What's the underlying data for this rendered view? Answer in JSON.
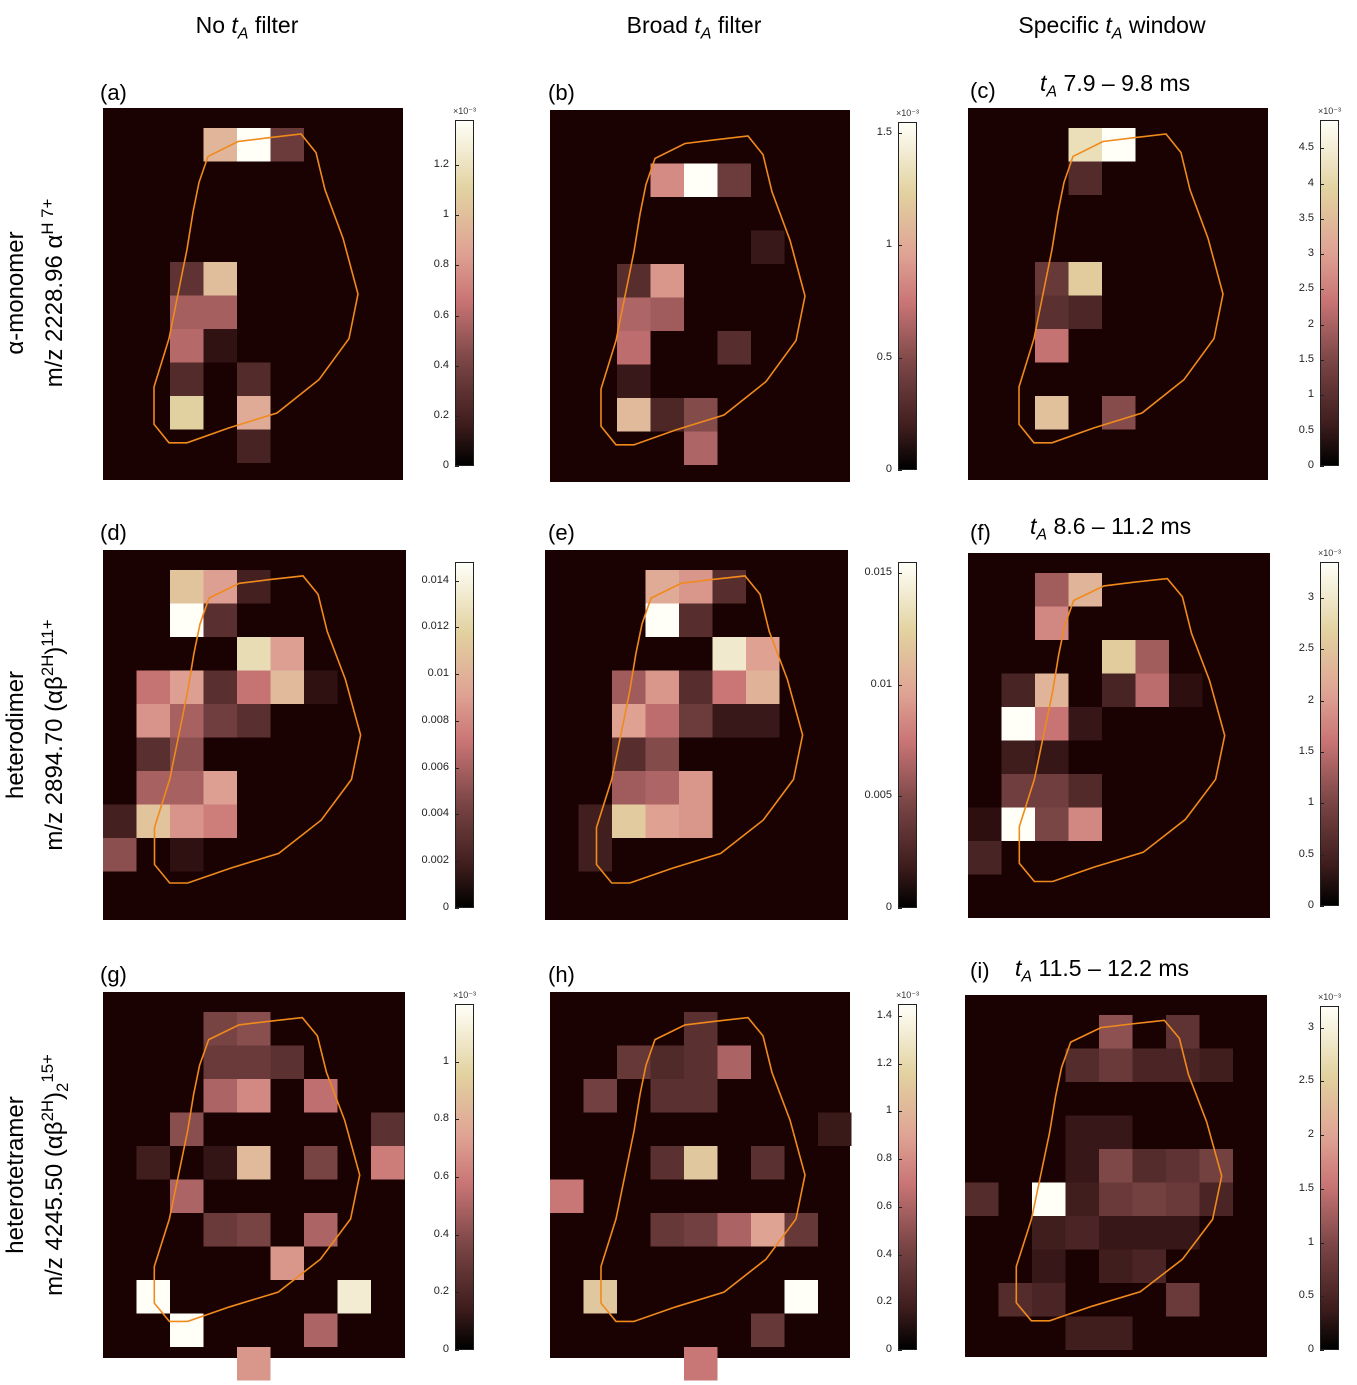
{
  "columns": [
    {
      "prefix": "No ",
      "t": "t",
      "sub": "A",
      "suffix": " filter"
    },
    {
      "prefix": "Broad ",
      "t": "t",
      "sub": "A",
      "suffix": " filter"
    },
    {
      "prefix": "Specific ",
      "t": "t",
      "sub": "A",
      "suffix": " window"
    }
  ],
  "rows": [
    {
      "line1": "α-monomer",
      "line2_main": "m/z 2228.96 α",
      "line2_sup": "H 7+",
      "line2_sub": ""
    },
    {
      "line1": "heterodimer",
      "line2_main": "m/z 2894.70 (αβ",
      "line2_sup2": "2H",
      "line2_close": ")",
      "line2_sup": "11+",
      "line2_sub": ""
    },
    {
      "line1": "heterotetramer",
      "line2_main": "m/z 4245.50 (αβ",
      "line2_sup2": "2H",
      "line2_close": ")",
      "line2_sup": "15+",
      "line2_sub": "2"
    }
  ],
  "windows": [
    {
      "t": "t",
      "sub": "A",
      "range": " 7.9 – 9.8 ms"
    },
    {
      "t": "t",
      "sub": "A",
      "range": " 8.6 – 11.2 ms"
    },
    {
      "t": "t",
      "sub": "A",
      "range": " 11.5 – 12.2 ms"
    }
  ],
  "chart_data": [
    {
      "type": "heatmap",
      "label": "(a)",
      "vmax": 1.38,
      "exponent": "×10⁻³",
      "ticks": [
        "0",
        "0.2",
        "0.4",
        "0.6",
        "0.8",
        "1",
        "1.2"
      ],
      "tick_values": [
        0,
        0.2,
        0.4,
        0.6,
        0.8,
        1,
        1.2
      ],
      "cells": [
        [
          3,
          0,
          0.95
        ],
        [
          4,
          0,
          1.38
        ],
        [
          5,
          0,
          0.35
        ],
        [
          2,
          4,
          0.3
        ],
        [
          3,
          4,
          1.0
        ],
        [
          2,
          5,
          0.55
        ],
        [
          3,
          5,
          0.55
        ],
        [
          2,
          6,
          0.6
        ],
        [
          3,
          6,
          0.1
        ],
        [
          2,
          7,
          0.25
        ],
        [
          4,
          7,
          0.25
        ],
        [
          2,
          8,
          1.1
        ],
        [
          4,
          8,
          0.9
        ],
        [
          4,
          9,
          0.2
        ]
      ]
    },
    {
      "type": "heatmap",
      "label": "(b)",
      "vmax": 1.55,
      "exponent": "×10⁻³",
      "ticks": [
        "0",
        "0.5",
        "1",
        "1.5"
      ],
      "tick_values": [
        0,
        0.5,
        1,
        1.5
      ],
      "cells": [
        [
          3,
          1,
          0.85
        ],
        [
          4,
          1,
          1.55
        ],
        [
          5,
          1,
          0.4
        ],
        [
          6,
          3,
          0.15
        ],
        [
          2,
          4,
          0.3
        ],
        [
          3,
          4,
          0.9
        ],
        [
          2,
          5,
          0.65
        ],
        [
          3,
          5,
          0.6
        ],
        [
          2,
          6,
          0.7
        ],
        [
          5,
          6,
          0.3
        ],
        [
          2,
          7,
          0.15
        ],
        [
          2,
          8,
          1.1
        ],
        [
          3,
          8,
          0.25
        ],
        [
          4,
          8,
          0.5
        ],
        [
          4,
          9,
          0.65
        ]
      ]
    },
    {
      "type": "heatmap",
      "label": "(c)",
      "vmax": 4.9,
      "exponent": "×10⁻³",
      "ticks": [
        "0",
        "0.5",
        "1",
        "1.5",
        "2",
        "2.5",
        "3",
        "3.5",
        "4",
        "4.5"
      ],
      "tick_values": [
        0,
        0.5,
        1,
        1.5,
        2,
        2.5,
        3,
        3.5,
        4,
        4.5
      ],
      "cells": [
        [
          3,
          0,
          4.2
        ],
        [
          4,
          0,
          4.9
        ],
        [
          3,
          1,
          0.9
        ],
        [
          2,
          4,
          1.2
        ],
        [
          3,
          4,
          3.8
        ],
        [
          2,
          5,
          1.0
        ],
        [
          3,
          5,
          0.8
        ],
        [
          2,
          6,
          2.3
        ],
        [
          2,
          8,
          3.6
        ],
        [
          4,
          8,
          1.6
        ]
      ]
    },
    {
      "type": "heatmap",
      "label": "(d)",
      "vmax": 0.0148,
      "exponent": "",
      "ticks": [
        "0",
        "0.002",
        "0.004",
        "0.006",
        "0.008",
        "0.01",
        "0.012",
        "0.014"
      ],
      "tick_values": [
        0,
        0.002,
        0.004,
        0.006,
        0.008,
        0.01,
        0.012,
        0.014
      ],
      "cells": [
        [
          2,
          0,
          0.011
        ],
        [
          3,
          0,
          0.009
        ],
        [
          4,
          0,
          0.002
        ],
        [
          2,
          1,
          0.0148
        ],
        [
          3,
          1,
          0.003
        ],
        [
          4,
          2,
          0.0125
        ],
        [
          5,
          2,
          0.009
        ],
        [
          1,
          3,
          0.007
        ],
        [
          2,
          3,
          0.009
        ],
        [
          3,
          3,
          0.003
        ],
        [
          4,
          3,
          0.007
        ],
        [
          5,
          3,
          0.0105
        ],
        [
          6,
          3,
          0.001
        ],
        [
          1,
          4,
          0.0085
        ],
        [
          2,
          4,
          0.006
        ],
        [
          3,
          4,
          0.004
        ],
        [
          4,
          4,
          0.003
        ],
        [
          1,
          5,
          0.003
        ],
        [
          2,
          5,
          0.005
        ],
        [
          1,
          6,
          0.006
        ],
        [
          2,
          6,
          0.006
        ],
        [
          3,
          6,
          0.009
        ],
        [
          0,
          7,
          0.002
        ],
        [
          1,
          7,
          0.011
        ],
        [
          2,
          7,
          0.0085
        ],
        [
          3,
          7,
          0.0075
        ],
        [
          0,
          8,
          0.005
        ],
        [
          2,
          8,
          0.001
        ]
      ]
    },
    {
      "type": "heatmap",
      "label": "(e)",
      "vmax": 0.0155,
      "exponent": "",
      "ticks": [
        "0",
        "0.005",
        "0.01",
        "0.015"
      ],
      "tick_values": [
        0,
        0.005,
        0.01,
        0.015
      ],
      "cells": [
        [
          3,
          0,
          0.01
        ],
        [
          4,
          0,
          0.009
        ],
        [
          5,
          0,
          0.003
        ],
        [
          3,
          1,
          0.0155
        ],
        [
          4,
          1,
          0.003
        ],
        [
          5,
          2,
          0.014
        ],
        [
          6,
          2,
          0.0095
        ],
        [
          2,
          3,
          0.006
        ],
        [
          3,
          3,
          0.009
        ],
        [
          4,
          3,
          0.003
        ],
        [
          5,
          3,
          0.0075
        ],
        [
          6,
          3,
          0.0105
        ],
        [
          2,
          4,
          0.0095
        ],
        [
          3,
          4,
          0.007
        ],
        [
          4,
          4,
          0.004
        ],
        [
          5,
          4,
          0.0015
        ],
        [
          6,
          4,
          0.0015
        ],
        [
          2,
          5,
          0.003
        ],
        [
          3,
          5,
          0.005
        ],
        [
          2,
          6,
          0.006
        ],
        [
          3,
          6,
          0.0065
        ],
        [
          4,
          6,
          0.009
        ],
        [
          1,
          7,
          0.002
        ],
        [
          2,
          7,
          0.012
        ],
        [
          3,
          7,
          0.0095
        ],
        [
          4,
          7,
          0.009
        ],
        [
          1,
          8,
          0.002
        ]
      ]
    },
    {
      "type": "heatmap",
      "label": "(f)",
      "vmax": 3.35,
      "exponent": "×10⁻³",
      "ticks": [
        "0",
        "0.5",
        "1",
        "1.5",
        "2",
        "2.5",
        "3"
      ],
      "tick_values": [
        0,
        0.5,
        1,
        1.5,
        2,
        2.5,
        3
      ],
      "cells": [
        [
          2,
          0,
          1.3
        ],
        [
          3,
          0,
          2.3
        ],
        [
          2,
          1,
          1.8
        ],
        [
          4,
          2,
          2.6
        ],
        [
          5,
          2,
          1.3
        ],
        [
          1,
          3,
          0.5
        ],
        [
          2,
          3,
          2.3
        ],
        [
          4,
          3,
          0.5
        ],
        [
          5,
          3,
          1.5
        ],
        [
          6,
          3,
          0.2
        ],
        [
          1,
          4,
          3.35
        ],
        [
          2,
          4,
          1.6
        ],
        [
          3,
          4,
          0.3
        ],
        [
          1,
          5,
          0.4
        ],
        [
          2,
          5,
          0.3
        ],
        [
          1,
          6,
          0.9
        ],
        [
          2,
          6,
          0.9
        ],
        [
          3,
          6,
          0.6
        ],
        [
          0,
          7,
          0.2
        ],
        [
          1,
          7,
          3.35
        ],
        [
          2,
          7,
          1.0
        ],
        [
          3,
          7,
          1.8
        ],
        [
          0,
          8,
          0.5
        ]
      ]
    },
    {
      "type": "heatmap",
      "label": "(g)",
      "vmax": 1.2,
      "exponent": "×10⁻³",
      "ticks": [
        "0",
        "0.2",
        "0.4",
        "0.6",
        "0.8",
        "1"
      ],
      "tick_values": [
        0,
        0.2,
        0.4,
        0.6,
        0.8,
        1
      ],
      "cells": [
        [
          3,
          0,
          0.35
        ],
        [
          4,
          0,
          0.4
        ],
        [
          3,
          1,
          0.3
        ],
        [
          4,
          1,
          0.3
        ],
        [
          5,
          1,
          0.25
        ],
        [
          3,
          2,
          0.5
        ],
        [
          4,
          2,
          0.65
        ],
        [
          6,
          2,
          0.55
        ],
        [
          2,
          3,
          0.4
        ],
        [
          8,
          3,
          0.25
        ],
        [
          1,
          4,
          0.15
        ],
        [
          3,
          4,
          0.1
        ],
        [
          4,
          4,
          0.85
        ],
        [
          6,
          4,
          0.35
        ],
        [
          8,
          4,
          0.6
        ],
        [
          2,
          5,
          0.5
        ],
        [
          3,
          6,
          0.3
        ],
        [
          4,
          6,
          0.35
        ],
        [
          6,
          6,
          0.5
        ],
        [
          5,
          7,
          0.7
        ],
        [
          1,
          8,
          1.2
        ],
        [
          7,
          8,
          1.1
        ],
        [
          2,
          9,
          1.2
        ],
        [
          6,
          9,
          0.5
        ],
        [
          4,
          10,
          0.7
        ]
      ]
    },
    {
      "type": "heatmap",
      "label": "(h)",
      "vmax": 1.45,
      "exponent": "×10⁻³",
      "ticks": [
        "0",
        "0.2",
        "0.4",
        "0.6",
        "0.8",
        "1",
        "1.2",
        "1.4"
      ],
      "tick_values": [
        0,
        0.2,
        0.4,
        0.6,
        0.8,
        1,
        1.2,
        1.4
      ],
      "cells": [
        [
          4,
          0,
          0.3
        ],
        [
          2,
          1,
          0.35
        ],
        [
          3,
          1,
          0.25
        ],
        [
          4,
          1,
          0.3
        ],
        [
          5,
          1,
          0.6
        ],
        [
          1,
          2,
          0.4
        ],
        [
          3,
          2,
          0.3
        ],
        [
          4,
          2,
          0.3
        ],
        [
          8,
          3,
          0.15
        ],
        [
          3,
          4,
          0.3
        ],
        [
          4,
          4,
          1.1
        ],
        [
          6,
          4,
          0.3
        ],
        [
          0,
          5,
          0.7
        ],
        [
          3,
          6,
          0.35
        ],
        [
          4,
          6,
          0.4
        ],
        [
          5,
          6,
          0.6
        ],
        [
          6,
          6,
          0.9
        ],
        [
          7,
          6,
          0.35
        ],
        [
          1,
          8,
          1.1
        ],
        [
          7,
          8,
          1.45
        ],
        [
          6,
          9,
          0.35
        ],
        [
          4,
          10,
          0.7
        ]
      ]
    },
    {
      "type": "heatmap",
      "label": "(i)",
      "vmax": 3.2,
      "exponent": "×10⁻³",
      "ticks": [
        "0",
        "0.5",
        "1",
        "1.5",
        "2",
        "2.5",
        "3"
      ],
      "tick_values": [
        0,
        0.5,
        1,
        1.5,
        2,
        2.5,
        3
      ],
      "cells": [
        [
          4,
          0,
          1.1
        ],
        [
          6,
          0,
          0.7
        ],
        [
          3,
          1,
          0.6
        ],
        [
          4,
          1,
          0.8
        ],
        [
          5,
          1,
          0.5
        ],
        [
          6,
          1,
          0.5
        ],
        [
          7,
          1,
          0.4
        ],
        [
          3,
          3,
          0.3
        ],
        [
          4,
          3,
          0.3
        ],
        [
          3,
          4,
          0.3
        ],
        [
          4,
          4,
          1.0
        ],
        [
          5,
          4,
          0.6
        ],
        [
          6,
          4,
          0.7
        ],
        [
          7,
          4,
          0.9
        ],
        [
          0,
          5,
          0.6
        ],
        [
          2,
          5,
          3.2
        ],
        [
          3,
          5,
          0.4
        ],
        [
          4,
          5,
          0.8
        ],
        [
          5,
          5,
          0.9
        ],
        [
          6,
          5,
          0.8
        ],
        [
          7,
          5,
          0.5
        ],
        [
          2,
          6,
          0.4
        ],
        [
          3,
          6,
          0.5
        ],
        [
          4,
          6,
          0.3
        ],
        [
          5,
          6,
          0.3
        ],
        [
          6,
          6,
          0.3
        ],
        [
          2,
          7,
          0.3
        ],
        [
          4,
          7,
          0.4
        ],
        [
          5,
          7,
          0.5
        ],
        [
          1,
          8,
          0.6
        ],
        [
          2,
          8,
          0.5
        ],
        [
          6,
          8,
          0.8
        ],
        [
          3,
          9,
          0.4
        ],
        [
          4,
          9,
          0.4
        ]
      ]
    }
  ]
}
